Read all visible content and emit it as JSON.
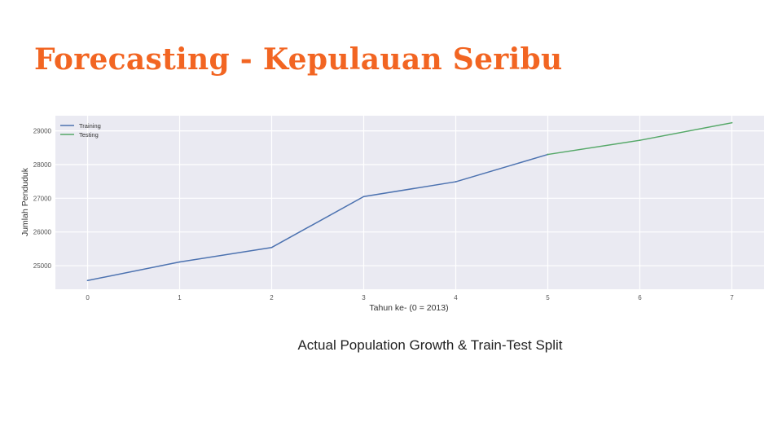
{
  "slide": {
    "title": "Forecasting - Kepulauan Seribu",
    "caption": "Actual Population Growth & Train-Test Split"
  },
  "colors": {
    "title": "#f26522",
    "plot_background": "#eaeaf2",
    "training": "#4c72b0",
    "testing": "#55a868"
  },
  "chart_data": {
    "type": "line",
    "title": "",
    "xlabel": "Tahun ke- (0 = 2013)",
    "ylabel": "Jumlah Penduduk",
    "xlim": [
      -0.35,
      7.35
    ],
    "ylim": [
      24300,
      29450
    ],
    "x_ticks": [
      0,
      1,
      2,
      3,
      4,
      5,
      6,
      7
    ],
    "y_ticks": [
      25000,
      26000,
      27000,
      28000,
      29000
    ],
    "grid": true,
    "legend": "top-left",
    "series": [
      {
        "name": "Training",
        "x": [
          0,
          1,
          2,
          3,
          4,
          5
        ],
        "y": [
          24560,
          25110,
          25540,
          27050,
          27490,
          28300
        ]
      },
      {
        "name": "Testing",
        "x": [
          5,
          6,
          7
        ],
        "y": [
          28300,
          28720,
          29240
        ]
      }
    ]
  }
}
